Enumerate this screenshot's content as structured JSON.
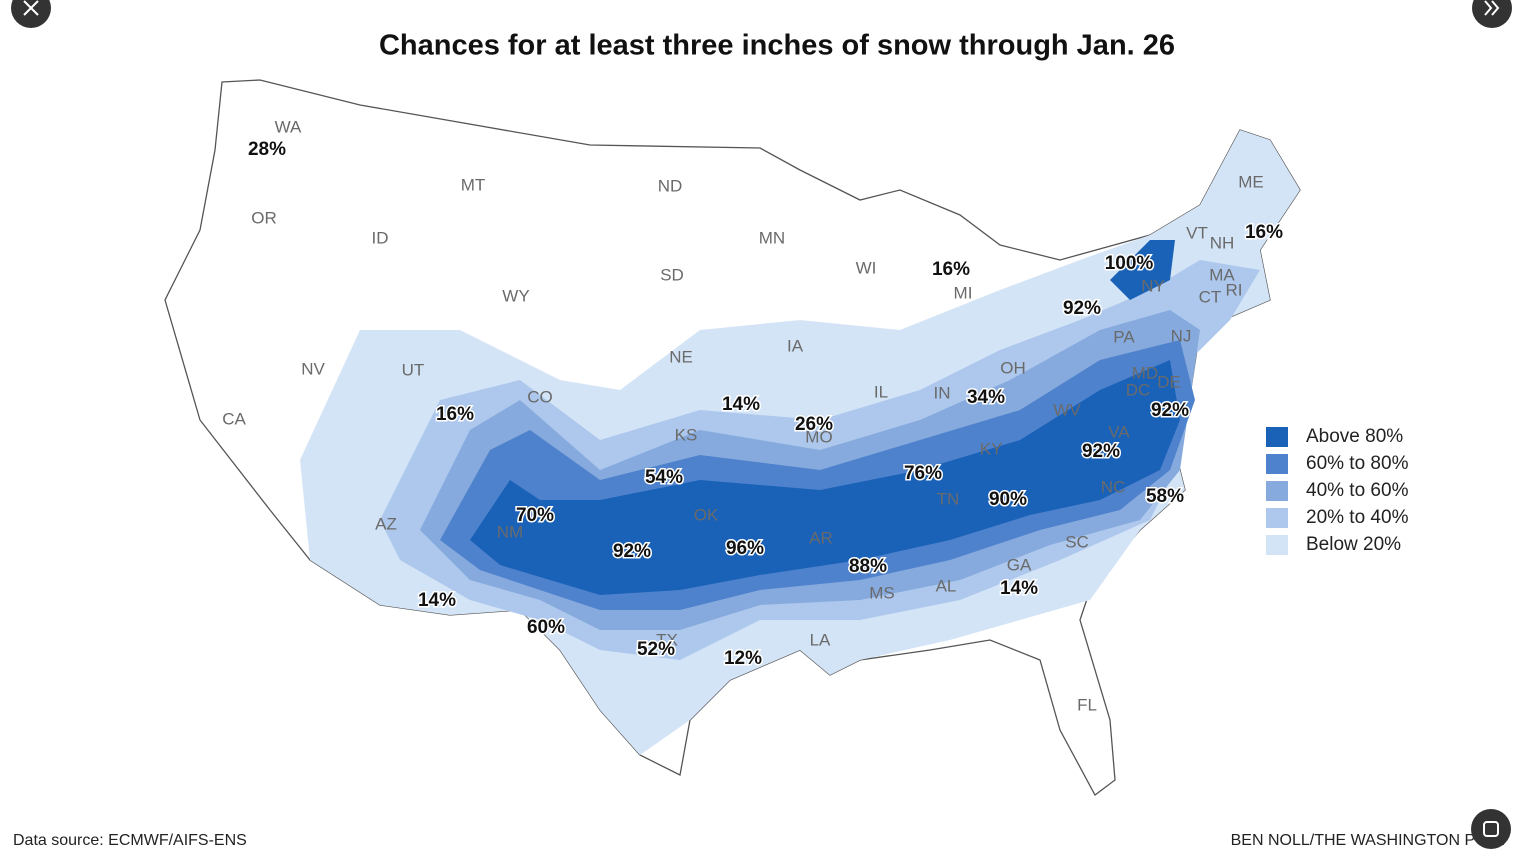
{
  "title": "Chances for at least three inches of snow through Jan. 26",
  "states": [
    "WA",
    "OR",
    "MT",
    "ID",
    "ND",
    "SD",
    "MN",
    "WI",
    "MI",
    "NY",
    "ME",
    "VT",
    "NH",
    "MA",
    "CT",
    "RI",
    "NJ",
    "PA",
    "OH",
    "IN",
    "IL",
    "IA",
    "NE",
    "WY",
    "NV",
    "UT",
    "CO",
    "KS",
    "MO",
    "KY",
    "WV",
    "VA",
    "MD",
    "DE",
    "DC",
    "CA",
    "AZ",
    "NM",
    "OK",
    "AR",
    "TN",
    "NC",
    "SC",
    "GA",
    "AL",
    "MS",
    "LA",
    "TX",
    "FL"
  ],
  "percent_labels": [
    "28%",
    "16%",
    "14%",
    "26%",
    "54%",
    "70%",
    "92%",
    "96%",
    "88%",
    "76%",
    "90%",
    "92%",
    "58%",
    "92%",
    "34%",
    "16%",
    "100%",
    "92%",
    "16%",
    "14%",
    "14%",
    "60%",
    "52%",
    "12%"
  ],
  "legend": [
    {
      "label": "Above 80%",
      "color": "#1a62b8"
    },
    {
      "label": "60% to 80%",
      "color": "#4f82cc"
    },
    {
      "label": "40% to 60%",
      "color": "#86aadd"
    },
    {
      "label": "20% to 40%",
      "color": "#adc8ec"
    },
    {
      "label": "Below 20%",
      "color": "#d4e4f7"
    }
  ],
  "source": "Data source: ECMWF/AIFS-ENS",
  "credit": "BEN NOLL/THE WASHINGTON POST"
}
